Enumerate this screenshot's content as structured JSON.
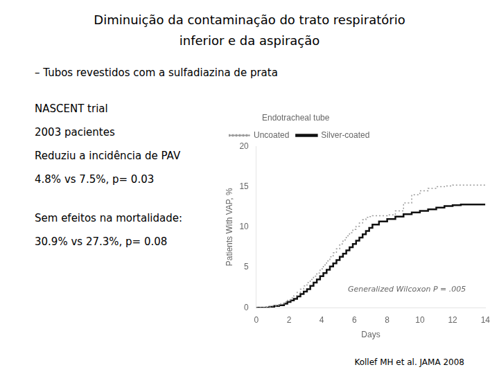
{
  "chart_data": {
    "type": "step",
    "title": [
      "Diminuição da contaminação do trato respiratório",
      "inferior e da aspiração"
    ],
    "subtitle": "–  Tubos revestidos com a sulfadiazina de prata",
    "annotations": [
      [
        "NASCENT trial",
        "2003 pacientes",
        "Reduziu a incidência de PAV",
        "4.8% vs 7.5%, p= 0.03"
      ],
      [
        "Sem efeitos na mortalidade:",
        "30.9% vs 27.3%, p= 0.08"
      ]
    ],
    "plot_note": "Generalized Wilcoxon P = .005",
    "citation": "Kollef MH et al. JAMA 2008",
    "xlabel": "Days",
    "ylabel": "Patients With VAP, %",
    "xlim": [
      0,
      14
    ],
    "xticks": [
      0,
      2,
      4,
      6,
      8,
      10,
      12,
      14
    ],
    "ylim": [
      0,
      20
    ],
    "yticks": [
      0,
      5,
      10,
      15,
      20
    ],
    "grid": false,
    "legend": "upper left",
    "legend_title": "Endotracheal tube",
    "series": [
      {
        "name": "Uncoated",
        "color": "#999999",
        "line_style": "dotted",
        "x": [
          0,
          0.3,
          0.6,
          0.9,
          1.2,
          1.5,
          1.7,
          1.9,
          2.1,
          2.3,
          2.5,
          2.7,
          2.9,
          3.1,
          3.3,
          3.5,
          3.7,
          3.9,
          4.1,
          4.3,
          4.5,
          4.7,
          4.9,
          5.1,
          5.3,
          5.5,
          5.7,
          5.9,
          6.1,
          6.3,
          6.5,
          6.7,
          6.9,
          7.1,
          7.5,
          7.9,
          8.0,
          8.5,
          9.0,
          9.5,
          10,
          10.5,
          11,
          11.5,
          12,
          13,
          14
        ],
        "values": [
          0,
          0,
          0.1,
          0.2,
          0.3,
          0.5,
          0.7,
          0.9,
          1.2,
          1.5,
          1.9,
          2.3,
          2.7,
          3.1,
          3.5,
          3.9,
          4.3,
          4.8,
          5.3,
          5.8,
          6.3,
          6.8,
          7.3,
          7.9,
          8.4,
          8.9,
          9.3,
          9.7,
          10.1,
          10.5,
          10.9,
          11.2,
          11.3,
          11.4,
          11.4,
          11.4,
          11.5,
          12.0,
          13.0,
          14.0,
          14.5,
          14.8,
          15.0,
          15.1,
          15.2,
          15.2,
          15.2
        ]
      },
      {
        "name": "Silver-coated",
        "color": "#111111",
        "line_style": "solid",
        "x": [
          0,
          0.5,
          0.8,
          1.1,
          1.4,
          1.7,
          1.9,
          2.1,
          2.3,
          2.5,
          2.7,
          2.9,
          3.1,
          3.3,
          3.5,
          3.7,
          3.9,
          4.1,
          4.3,
          4.5,
          4.7,
          4.9,
          5.1,
          5.3,
          5.5,
          5.7,
          5.9,
          6.1,
          6.3,
          6.5,
          6.7,
          6.9,
          7.1,
          7.5,
          8.0,
          8.5,
          9.0,
          9.5,
          10.0,
          10.5,
          11.0,
          11.5,
          12.0,
          12.5,
          13.0,
          14.0
        ],
        "values": [
          0,
          0,
          0.1,
          0.2,
          0.3,
          0.5,
          0.7,
          0.9,
          1.1,
          1.4,
          1.7,
          2.0,
          2.3,
          2.7,
          3.1,
          3.5,
          3.9,
          4.3,
          4.7,
          5.1,
          5.5,
          5.9,
          6.3,
          6.7,
          7.1,
          7.5,
          7.9,
          8.3,
          8.7,
          9.1,
          9.5,
          9.9,
          10.3,
          10.7,
          11.0,
          11.3,
          11.6,
          11.8,
          12.0,
          12.2,
          12.4,
          12.6,
          12.7,
          12.8,
          12.8,
          12.8
        ]
      }
    ]
  }
}
